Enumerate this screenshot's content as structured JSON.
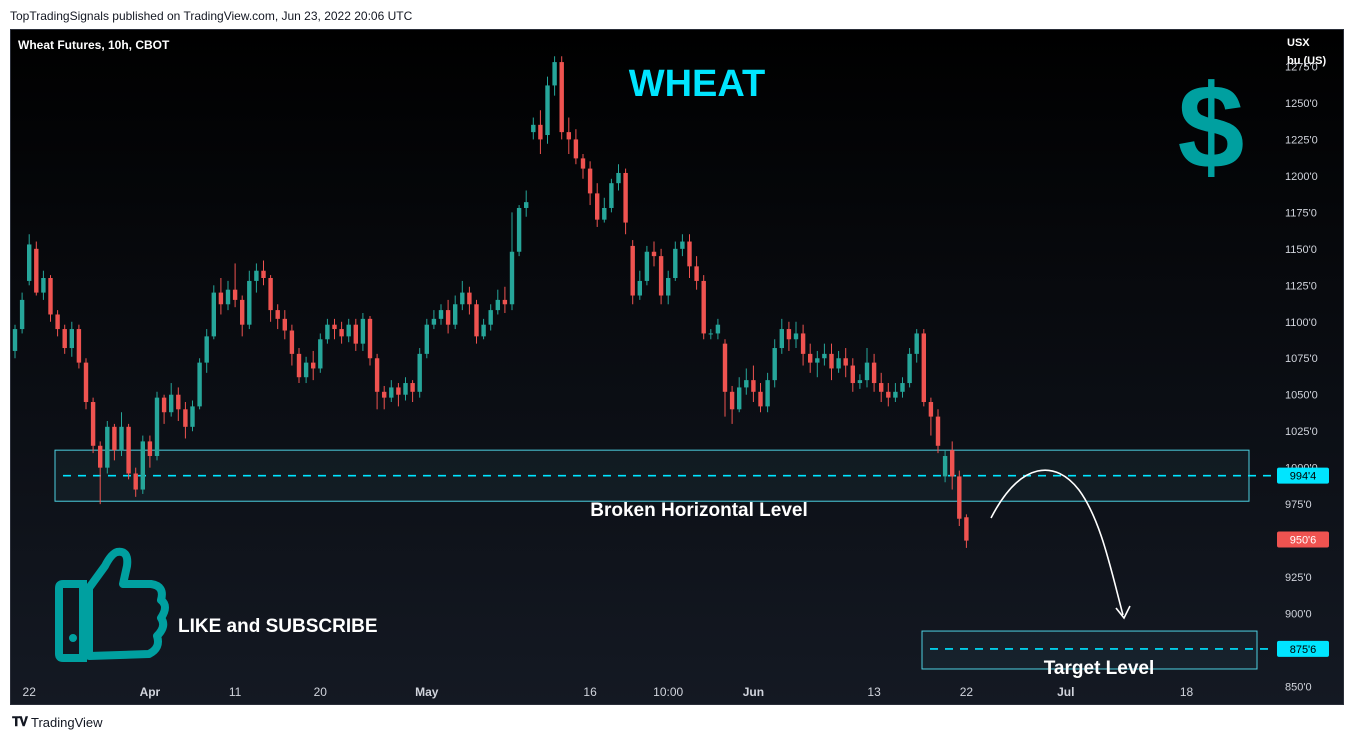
{
  "header": {
    "published_text": "TopTradingSignals published on TradingView.com, Jun 23, 2022 20:06 UTC"
  },
  "footer": {
    "brand": "TradingView"
  },
  "colors": {
    "up": "#26a69a",
    "down": "#ef5350",
    "cyan": "#00e5ff",
    "zone_border": "#4dd0e1",
    "dollar": "#00a0a0",
    "axis_text": "#d1d4dc"
  },
  "chart_data": {
    "type": "candlestick",
    "title": "Wheat Futures, 10h, CBOT",
    "unit_label": [
      "USX",
      "bu (US)"
    ],
    "ylim": [
      838,
      1300
    ],
    "y_ticks": [
      "1275'0",
      "1250'0",
      "1225'0",
      "1200'0",
      "1175'0",
      "1150'0",
      "1125'0",
      "1100'0",
      "1075'0",
      "1050'0",
      "1025'0",
      "1000'0",
      "975'0",
      "950'0",
      "925'0",
      "900'0",
      "875'0",
      "850'0"
    ],
    "x_ticks": [
      "22",
      "Apr",
      "11",
      "20",
      "May",
      "16",
      "10:00",
      "Jun",
      "13",
      "22",
      "Jul",
      "18"
    ],
    "price_labels": [
      {
        "text": "994'4",
        "value": 994.5,
        "kind": "level"
      },
      {
        "text": "950'6",
        "value": 950.75,
        "kind": "last"
      },
      {
        "text": "875'6",
        "value": 875.75,
        "kind": "level"
      }
    ],
    "zones": [
      {
        "name": "broken-level",
        "label": "Broken Horizontal Level",
        "low": 977,
        "high": 1012,
        "line": 994.5
      },
      {
        "name": "target-level",
        "label": "Target Level",
        "low": 862,
        "high": 888,
        "line": 875.75
      }
    ],
    "annotations": {
      "heading": "WHEAT",
      "dollar": "$",
      "cta": "LIKE and SUBSCRIBE"
    },
    "candles": [
      [
        1080,
        1095,
        1075,
        1098
      ],
      [
        1095,
        1115,
        1092,
        1120
      ],
      [
        1128,
        1153,
        1125,
        1160
      ],
      [
        1150,
        1120,
        1118,
        1155
      ],
      [
        1120,
        1130,
        1115,
        1135
      ],
      [
        1130,
        1105,
        1100,
        1132
      ],
      [
        1105,
        1095,
        1090,
        1108
      ],
      [
        1095,
        1082,
        1078,
        1098
      ],
      [
        1082,
        1095,
        1076,
        1100
      ],
      [
        1095,
        1072,
        1068,
        1098
      ],
      [
        1072,
        1045,
        1040,
        1075
      ],
      [
        1045,
        1015,
        1010,
        1048
      ],
      [
        1015,
        1000,
        975,
        1018
      ],
      [
        1000,
        1028,
        996,
        1032
      ],
      [
        1028,
        1012,
        1005,
        1030
      ],
      [
        1012,
        1028,
        1008,
        1038
      ],
      [
        1028,
        996,
        992,
        1030
      ],
      [
        996,
        985,
        980,
        1000
      ],
      [
        985,
        1018,
        982,
        1022
      ],
      [
        1018,
        1008,
        1000,
        1022
      ],
      [
        1008,
        1048,
        1005,
        1052
      ],
      [
        1048,
        1038,
        1030,
        1050
      ],
      [
        1038,
        1050,
        1035,
        1058
      ],
      [
        1050,
        1040,
        1032,
        1055
      ],
      [
        1040,
        1028,
        1020,
        1045
      ],
      [
        1028,
        1042,
        1025,
        1046
      ],
      [
        1042,
        1072,
        1040,
        1075
      ],
      [
        1072,
        1090,
        1065,
        1095
      ],
      [
        1090,
        1120,
        1088,
        1125
      ],
      [
        1120,
        1112,
        1105,
        1130
      ],
      [
        1112,
        1122,
        1108,
        1128
      ],
      [
        1122,
        1115,
        1110,
        1140
      ],
      [
        1115,
        1098,
        1090,
        1118
      ],
      [
        1098,
        1128,
        1095,
        1135
      ],
      [
        1128,
        1135,
        1120,
        1140
      ],
      [
        1135,
        1130,
        1125,
        1142
      ],
      [
        1130,
        1108,
        1100,
        1132
      ],
      [
        1108,
        1102,
        1095,
        1112
      ],
      [
        1102,
        1094,
        1088,
        1108
      ],
      [
        1094,
        1078,
        1070,
        1098
      ],
      [
        1078,
        1062,
        1058,
        1082
      ],
      [
        1062,
        1072,
        1058,
        1076
      ],
      [
        1072,
        1068,
        1060,
        1080
      ],
      [
        1068,
        1088,
        1065,
        1092
      ],
      [
        1088,
        1098,
        1085,
        1102
      ],
      [
        1098,
        1095,
        1088,
        1102
      ],
      [
        1095,
        1090,
        1085,
        1100
      ],
      [
        1090,
        1098,
        1086,
        1102
      ],
      [
        1098,
        1085,
        1080,
        1102
      ],
      [
        1085,
        1102,
        1080,
        1106
      ],
      [
        1102,
        1075,
        1070,
        1104
      ],
      [
        1075,
        1052,
        1040,
        1078
      ],
      [
        1052,
        1048,
        1040,
        1056
      ],
      [
        1048,
        1055,
        1045,
        1060
      ],
      [
        1055,
        1050,
        1042,
        1058
      ],
      [
        1050,
        1058,
        1046,
        1062
      ],
      [
        1058,
        1052,
        1045,
        1060
      ],
      [
        1052,
        1078,
        1048,
        1082
      ],
      [
        1078,
        1098,
        1075,
        1102
      ],
      [
        1098,
        1102,
        1095,
        1108
      ],
      [
        1102,
        1108,
        1098,
        1112
      ],
      [
        1108,
        1098,
        1092,
        1115
      ],
      [
        1098,
        1112,
        1095,
        1118
      ],
      [
        1112,
        1120,
        1108,
        1128
      ],
      [
        1120,
        1112,
        1105,
        1124
      ],
      [
        1112,
        1090,
        1085,
        1115
      ],
      [
        1090,
        1098,
        1088,
        1102
      ],
      [
        1098,
        1108,
        1094,
        1112
      ],
      [
        1108,
        1115,
        1105,
        1122
      ],
      [
        1115,
        1112,
        1106,
        1124
      ],
      [
        1112,
        1148,
        1108,
        1175
      ],
      [
        1148,
        1178,
        1145,
        1180
      ],
      [
        1178,
        1182,
        1172,
        1190
      ],
      [
        1230,
        1235,
        1225,
        1240
      ],
      [
        1235,
        1225,
        1215,
        1245
      ],
      [
        1228,
        1262,
        1222,
        1268
      ],
      [
        1262,
        1278,
        1255,
        1282
      ],
      [
        1278,
        1230,
        1225,
        1282
      ],
      [
        1230,
        1225,
        1215,
        1240
      ],
      [
        1225,
        1212,
        1208,
        1232
      ],
      [
        1212,
        1205,
        1198,
        1215
      ],
      [
        1205,
        1188,
        1180,
        1210
      ],
      [
        1188,
        1170,
        1165,
        1195
      ],
      [
        1170,
        1178,
        1168,
        1185
      ],
      [
        1178,
        1195,
        1175,
        1198
      ],
      [
        1195,
        1202,
        1190,
        1208
      ],
      [
        1202,
        1168,
        1160,
        1205
      ],
      [
        1152,
        1118,
        1112,
        1156
      ],
      [
        1118,
        1128,
        1115,
        1135
      ],
      [
        1128,
        1148,
        1125,
        1152
      ],
      [
        1148,
        1145,
        1138,
        1155
      ],
      [
        1145,
        1118,
        1112,
        1150
      ],
      [
        1118,
        1130,
        1112,
        1135
      ],
      [
        1130,
        1150,
        1128,
        1155
      ],
      [
        1150,
        1155,
        1145,
        1160
      ],
      [
        1155,
        1138,
        1130,
        1160
      ],
      [
        1138,
        1128,
        1122,
        1145
      ],
      [
        1128,
        1092,
        1088,
        1132
      ],
      [
        1092,
        1092,
        1088,
        1095
      ],
      [
        1092,
        1098,
        1088,
        1102
      ],
      [
        1085,
        1052,
        1035,
        1088
      ],
      [
        1052,
        1040,
        1030,
        1056
      ],
      [
        1040,
        1055,
        1038,
        1062
      ],
      [
        1055,
        1060,
        1050,
        1068
      ],
      [
        1060,
        1052,
        1045,
        1070
      ],
      [
        1052,
        1042,
        1038,
        1058
      ],
      [
        1042,
        1060,
        1038,
        1065
      ],
      [
        1060,
        1082,
        1055,
        1088
      ],
      [
        1082,
        1095,
        1078,
        1102
      ],
      [
        1095,
        1088,
        1080,
        1100
      ],
      [
        1088,
        1092,
        1082,
        1100
      ],
      [
        1092,
        1078,
        1070,
        1098
      ],
      [
        1078,
        1072,
        1065,
        1085
      ],
      [
        1072,
        1075,
        1062,
        1080
      ],
      [
        1075,
        1078,
        1070,
        1085
      ],
      [
        1078,
        1068,
        1060,
        1085
      ],
      [
        1068,
        1075,
        1065,
        1080
      ],
      [
        1075,
        1070,
        1062,
        1082
      ],
      [
        1070,
        1058,
        1052,
        1075
      ],
      [
        1058,
        1060,
        1054,
        1064
      ],
      [
        1060,
        1072,
        1055,
        1082
      ],
      [
        1072,
        1058,
        1052,
        1078
      ],
      [
        1058,
        1052,
        1045,
        1065
      ],
      [
        1052,
        1048,
        1042,
        1058
      ],
      [
        1048,
        1052,
        1045,
        1058
      ],
      [
        1052,
        1058,
        1048,
        1062
      ],
      [
        1058,
        1078,
        1055,
        1082
      ],
      [
        1078,
        1092,
        1072,
        1095
      ],
      [
        1092,
        1045,
        1042,
        1095
      ],
      [
        1045,
        1035,
        1022,
        1048
      ],
      [
        1035,
        1015,
        1010,
        1040
      ],
      [
        994,
        1008,
        990,
        1012
      ],
      [
        1012,
        994,
        985,
        1018
      ],
      [
        994,
        965,
        960,
        998
      ],
      [
        966,
        950,
        945,
        968
      ]
    ]
  }
}
